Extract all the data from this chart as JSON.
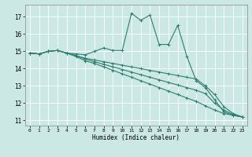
{
  "xlabel": "Humidex (Indice chaleur)",
  "background_color": "#cce8e4",
  "grid_color": "#ffffff",
  "line_color": "#2e7d6e",
  "xlim": [
    -0.5,
    23.5
  ],
  "ylim": [
    10.7,
    17.7
  ],
  "yticks": [
    11,
    12,
    13,
    14,
    15,
    16,
    17
  ],
  "xticks": [
    0,
    1,
    2,
    3,
    4,
    5,
    6,
    7,
    8,
    9,
    10,
    11,
    12,
    13,
    14,
    15,
    16,
    17,
    18,
    19,
    20,
    21,
    22,
    23
  ],
  "lines": [
    {
      "x": [
        0,
        1,
        2,
        3,
        4,
        5,
        6,
        7,
        8,
        9,
        10,
        11,
        12,
        13,
        14,
        15,
        16,
        17,
        18,
        19,
        20,
        21,
        22,
        23
      ],
      "y": [
        14.9,
        14.85,
        15.0,
        15.05,
        14.9,
        14.85,
        14.8,
        15.0,
        15.2,
        15.05,
        15.05,
        17.2,
        16.8,
        17.1,
        15.4,
        15.4,
        16.5,
        14.7,
        13.3,
        12.9,
        12.2,
        11.5,
        11.3,
        11.2
      ]
    },
    {
      "x": [
        0,
        1,
        2,
        3,
        4,
        5,
        6,
        7,
        8,
        9,
        10,
        11,
        12,
        13,
        14,
        15,
        16,
        17,
        18,
        19,
        20,
        21,
        22,
        23
      ],
      "y": [
        14.9,
        14.85,
        15.0,
        15.05,
        14.9,
        14.75,
        14.6,
        14.5,
        14.4,
        14.3,
        14.2,
        14.1,
        14.0,
        13.9,
        13.8,
        13.7,
        13.6,
        13.5,
        13.4,
        13.0,
        12.5,
        11.8,
        11.4,
        11.2
      ]
    },
    {
      "x": [
        0,
        1,
        2,
        3,
        4,
        5,
        6,
        7,
        8,
        9,
        10,
        11,
        12,
        13,
        14,
        15,
        16,
        17,
        18,
        19,
        20,
        21,
        22,
        23
      ],
      "y": [
        14.9,
        14.85,
        15.0,
        15.05,
        14.9,
        14.75,
        14.55,
        14.4,
        14.25,
        14.1,
        13.95,
        13.8,
        13.65,
        13.5,
        13.35,
        13.2,
        13.05,
        12.9,
        12.75,
        12.55,
        12.0,
        11.6,
        11.35,
        11.2
      ]
    },
    {
      "x": [
        0,
        1,
        2,
        3,
        4,
        5,
        6,
        7,
        8,
        9,
        10,
        11,
        12,
        13,
        14,
        15,
        16,
        17,
        18,
        19,
        20,
        21,
        22,
        23
      ],
      "y": [
        14.9,
        14.85,
        15.0,
        15.05,
        14.9,
        14.7,
        14.45,
        14.3,
        14.1,
        13.9,
        13.7,
        13.5,
        13.3,
        13.1,
        12.9,
        12.7,
        12.5,
        12.3,
        12.1,
        11.85,
        11.6,
        11.4,
        11.3,
        11.2
      ]
    }
  ]
}
